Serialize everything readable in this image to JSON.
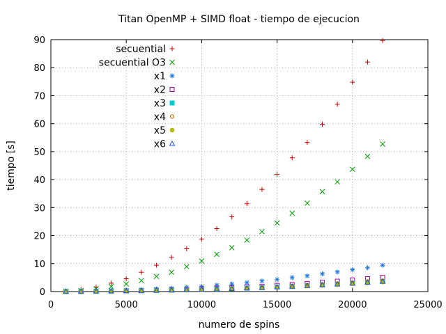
{
  "chart_data": {
    "type": "scatter",
    "title": "Titan OpenMP + SIMD float - tiempo de ejecucion",
    "xlabel": "numero de spins",
    "ylabel": "tiempo [s]",
    "xlim": [
      0,
      25000
    ],
    "ylim": [
      0,
      90
    ],
    "xticks": [
      0,
      5000,
      10000,
      15000,
      20000,
      25000
    ],
    "yticks": [
      0,
      10,
      20,
      30,
      40,
      50,
      60,
      70,
      80,
      90
    ],
    "grid": true,
    "legend_position": "top-left",
    "x": [
      1000,
      2000,
      3000,
      4000,
      5000,
      6000,
      7000,
      8000,
      9000,
      10000,
      11000,
      12000,
      13000,
      14000,
      15000,
      16000,
      17000,
      18000,
      19000,
      20000,
      21000,
      22000
    ],
    "series": [
      {
        "name": "secuential",
        "marker": "plus",
        "color": "#cc0000",
        "values": [
          0.2,
          0.7,
          1.6,
          3.0,
          4.6,
          6.9,
          9.4,
          12.2,
          15.3,
          18.7,
          22.5,
          26.7,
          31.4,
          36.5,
          41.9,
          47.8,
          53.3,
          59.8,
          66.9,
          74.8,
          82.0,
          89.7
        ]
      },
      {
        "name": "secuential O3",
        "marker": "cross",
        "color": "#009900",
        "values": [
          0.1,
          0.4,
          1.0,
          1.8,
          2.7,
          3.9,
          5.4,
          6.9,
          8.9,
          10.9,
          13.3,
          15.7,
          18.4,
          21.4,
          24.5,
          28.0,
          31.6,
          35.7,
          39.2,
          43.7,
          48.3,
          52.7
        ]
      },
      {
        "name": "x1",
        "marker": "star",
        "color": "#1f78d8",
        "values": [
          0.05,
          0.1,
          0.2,
          0.3,
          0.45,
          0.65,
          0.9,
          1.2,
          1.5,
          1.8,
          2.3,
          2.7,
          3.2,
          3.8,
          4.3,
          5.0,
          5.6,
          6.3,
          7.0,
          7.8,
          8.5,
          9.4
        ]
      },
      {
        "name": "x2",
        "marker": "box",
        "color": "#aa00aa",
        "values": [
          0.03,
          0.07,
          0.12,
          0.2,
          0.3,
          0.4,
          0.5,
          0.65,
          0.8,
          1.0,
          1.2,
          1.4,
          1.65,
          1.9,
          2.2,
          2.5,
          2.9,
          3.3,
          3.7,
          4.1,
          4.6,
          5.1
        ]
      },
      {
        "name": "x3",
        "marker": "filled-box",
        "color": "#00cccc",
        "values": [
          0.02,
          0.05,
          0.09,
          0.15,
          0.22,
          0.3,
          0.38,
          0.48,
          0.6,
          0.72,
          0.86,
          1.0,
          1.2,
          1.4,
          1.6,
          1.8,
          2.1,
          2.4,
          2.7,
          3.0,
          3.3,
          3.6
        ]
      },
      {
        "name": "x4",
        "marker": "circle",
        "color": "#cc6600",
        "values": [
          0.02,
          0.05,
          0.1,
          0.16,
          0.23,
          0.32,
          0.41,
          0.52,
          0.65,
          0.78,
          0.93,
          1.1,
          1.3,
          1.5,
          1.7,
          2.0,
          2.3,
          2.6,
          2.9,
          3.2,
          3.6,
          3.9
        ]
      },
      {
        "name": "x5",
        "marker": "filled-circle",
        "color": "#b8b800",
        "values": [
          0.02,
          0.04,
          0.08,
          0.13,
          0.19,
          0.27,
          0.35,
          0.45,
          0.56,
          0.68,
          0.82,
          0.97,
          1.13,
          1.3,
          1.5,
          1.7,
          1.95,
          2.2,
          2.5,
          2.8,
          3.1,
          3.4
        ]
      },
      {
        "name": "x6",
        "marker": "triangle",
        "color": "#1f4fd8",
        "values": [
          0.02,
          0.05,
          0.09,
          0.14,
          0.21,
          0.29,
          0.38,
          0.48,
          0.6,
          0.72,
          0.87,
          1.02,
          1.2,
          1.38,
          1.58,
          1.8,
          2.05,
          2.32,
          2.6,
          2.9,
          3.25,
          3.6
        ]
      }
    ]
  }
}
